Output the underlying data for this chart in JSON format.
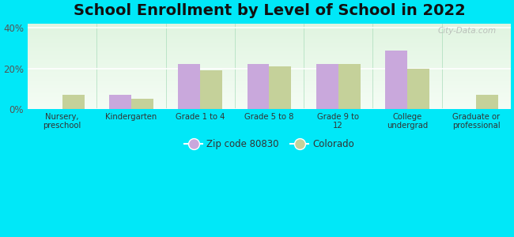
{
  "title": "School Enrollment by Level of School in 2022",
  "categories": [
    "Nursery,\npreschool",
    "Kindergarten",
    "Grade 1 to 4",
    "Grade 5 to 8",
    "Grade 9 to\n12",
    "College\nundergrad",
    "Graduate or\nprofessional"
  ],
  "zip_values": [
    0,
    7,
    22,
    22,
    22,
    29,
    0
  ],
  "co_values": [
    7,
    5,
    19,
    21,
    22,
    20,
    7
  ],
  "zip_color": "#c9a8dc",
  "co_color": "#c5d19a",
  "background_outer": "#00e8f8",
  "background_inner": "#e8f5e8",
  "ylim": [
    0,
    42
  ],
  "yticks": [
    0,
    20,
    40
  ],
  "ytick_labels": [
    "0%",
    "20%",
    "40%"
  ],
  "title_fontsize": 14,
  "legend_label_zip": "Zip code 80830",
  "legend_label_co": "Colorado",
  "watermark": "City-Data.com"
}
